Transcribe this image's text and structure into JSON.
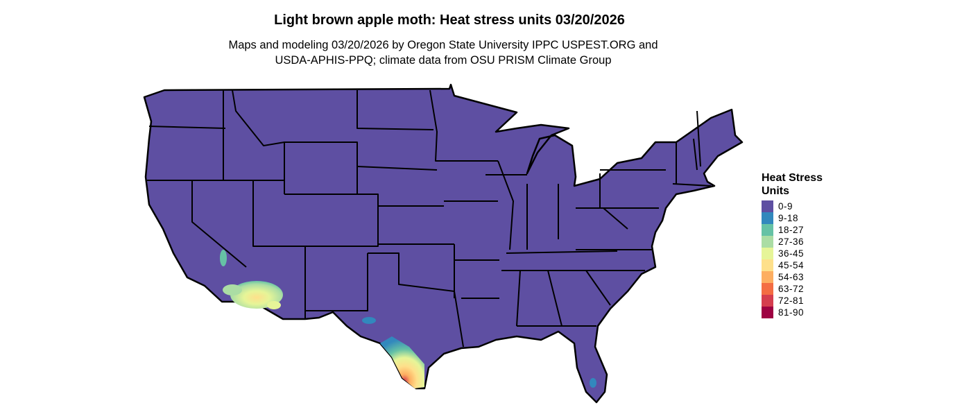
{
  "title": "Light brown apple moth: Heat stress units 03/20/2026",
  "subtitle_lines": [
    "Maps and modeling 03/20/2026 by Oregon State University IPPC USPEST.ORG and",
    "USDA-APHIS-PPQ; climate data from OSU PRISM Climate Group"
  ],
  "map": {
    "region": "Contiguous United States",
    "base_color": "#5E4FA2",
    "border_color": "#000000",
    "hotspots": [
      "southern Arizona / southeastern California deserts",
      "south Texas",
      "south Florida"
    ]
  },
  "legend": {
    "title": "Heat Stress Units",
    "items": [
      {
        "label": "0-9",
        "color": "#5E4FA2"
      },
      {
        "label": "9-18",
        "color": "#3288BD"
      },
      {
        "label": "18-27",
        "color": "#66C2A5"
      },
      {
        "label": "27-36",
        "color": "#ABDDA4"
      },
      {
        "label": "36-45",
        "color": "#E6F598"
      },
      {
        "label": "45-54",
        "color": "#FEE08B"
      },
      {
        "label": "54-63",
        "color": "#FDAE61"
      },
      {
        "label": "63-72",
        "color": "#F46D43"
      },
      {
        "label": "72-81",
        "color": "#D53E4F"
      },
      {
        "label": "81-90",
        "color": "#9E0142"
      }
    ]
  }
}
